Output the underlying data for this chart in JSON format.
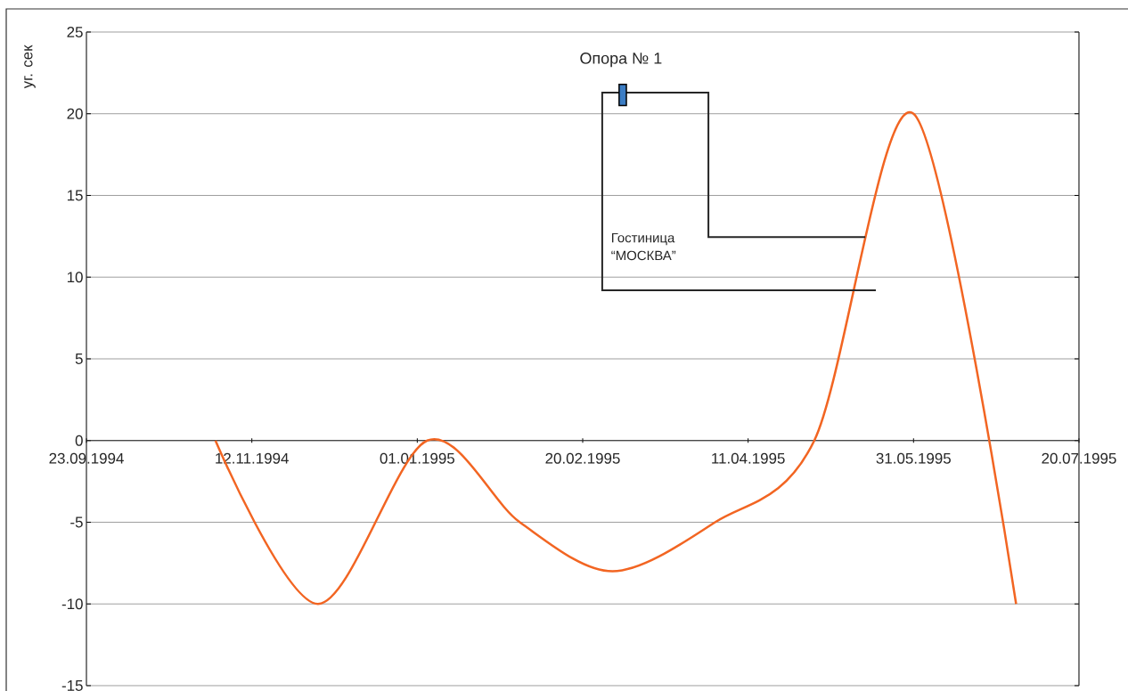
{
  "chart_data": {
    "type": "line",
    "ylabel": "уг. сек",
    "x": [
      "1994-11-01",
      "1994-12-02",
      "1995-01-04",
      "1995-02-01",
      "1995-03-01",
      "1995-04-01",
      "1995-05-01",
      "1995-05-31",
      "1995-07-01"
    ],
    "values": [
      0,
      -10,
      0,
      -5,
      -8,
      -5,
      0,
      20,
      -10
    ],
    "color": "#f26522",
    "xlim": [
      "1994-09-23",
      "1995-07-20"
    ],
    "xticks": [
      {
        "value": "1994-09-23",
        "label": "23.09.1994"
      },
      {
        "value": "1994-11-12",
        "label": "12.11.1994"
      },
      {
        "value": "1995-01-01",
        "label": "01.01.1995"
      },
      {
        "value": "1995-02-20",
        "label": "20.02.1995"
      },
      {
        "value": "1995-04-11",
        "label": "11.04.1995"
      },
      {
        "value": "1995-05-31",
        "label": "31.05.1995"
      },
      {
        "value": "1995-07-20",
        "label": "20.07.1995"
      }
    ],
    "ylim": [
      -15,
      25
    ],
    "yticks": [
      -15,
      -10,
      -5,
      0,
      5,
      10,
      15,
      20,
      25
    ],
    "grid": "y",
    "annotations": [
      "Опора № 1",
      "Гостиница “МОСКВА”"
    ]
  }
}
